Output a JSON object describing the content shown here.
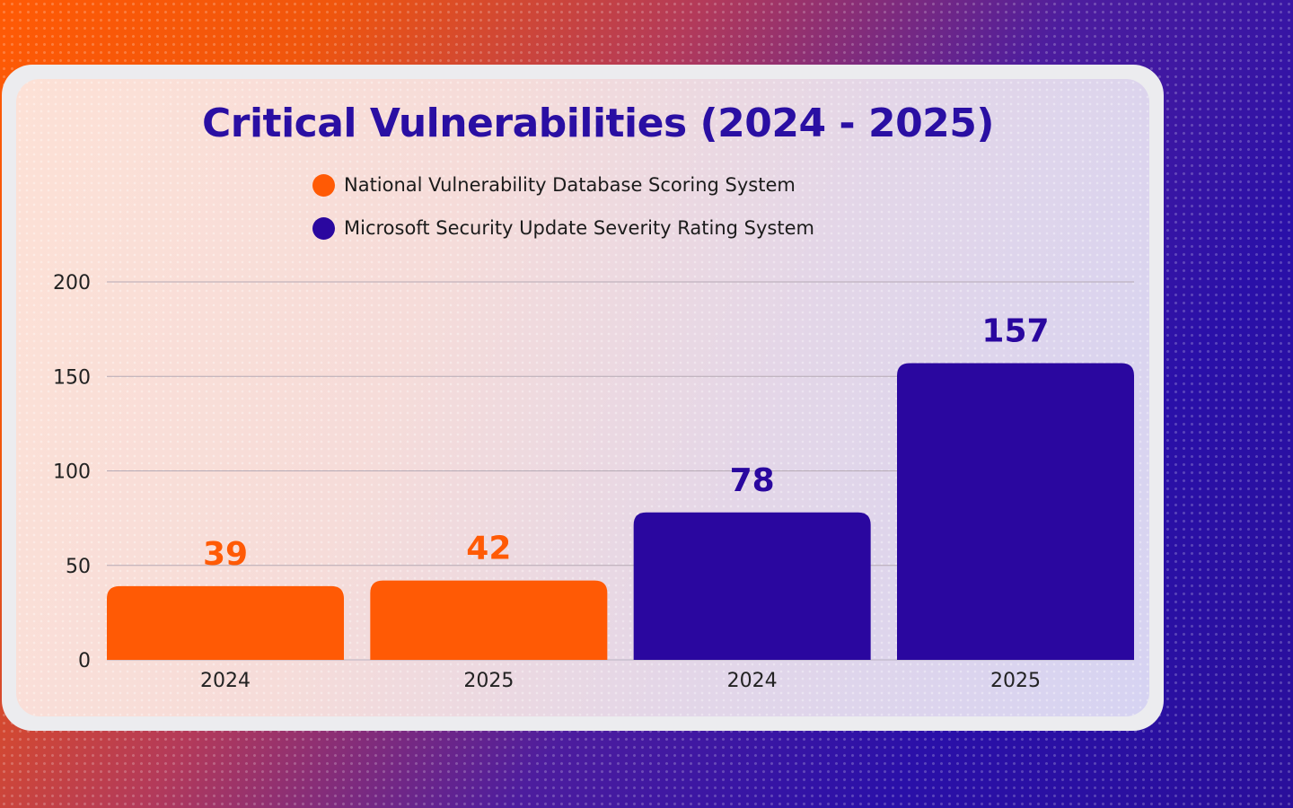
{
  "colors": {
    "orange": "#ff5a05",
    "purple": "#2a079f",
    "title": "#2a0fa3"
  },
  "legend": [
    {
      "label": "National Vulnerability Database Scoring System",
      "color": "#ff5a05"
    },
    {
      "label": "Microsoft Security Update Severity Rating System",
      "color": "#2a079f"
    }
  ],
  "chart_data": {
    "type": "bar",
    "title": "Critical Vulnerabilities (2024 - 2025)",
    "xlabel": "",
    "ylabel": "",
    "ylim": [
      0,
      200
    ],
    "yticks": [
      0,
      50,
      100,
      150,
      200
    ],
    "grid": true,
    "legend_position": "top-center",
    "categories": [
      "2024",
      "2025",
      "2024",
      "2025"
    ],
    "series": [
      {
        "name": "National Vulnerability Database Scoring System",
        "values": [
          39,
          42,
          null,
          null
        ],
        "color": "#ff5a05"
      },
      {
        "name": "Microsoft Security Update Severity Rating System",
        "values": [
          null,
          null,
          78,
          157
        ],
        "color": "#2a079f"
      }
    ]
  }
}
